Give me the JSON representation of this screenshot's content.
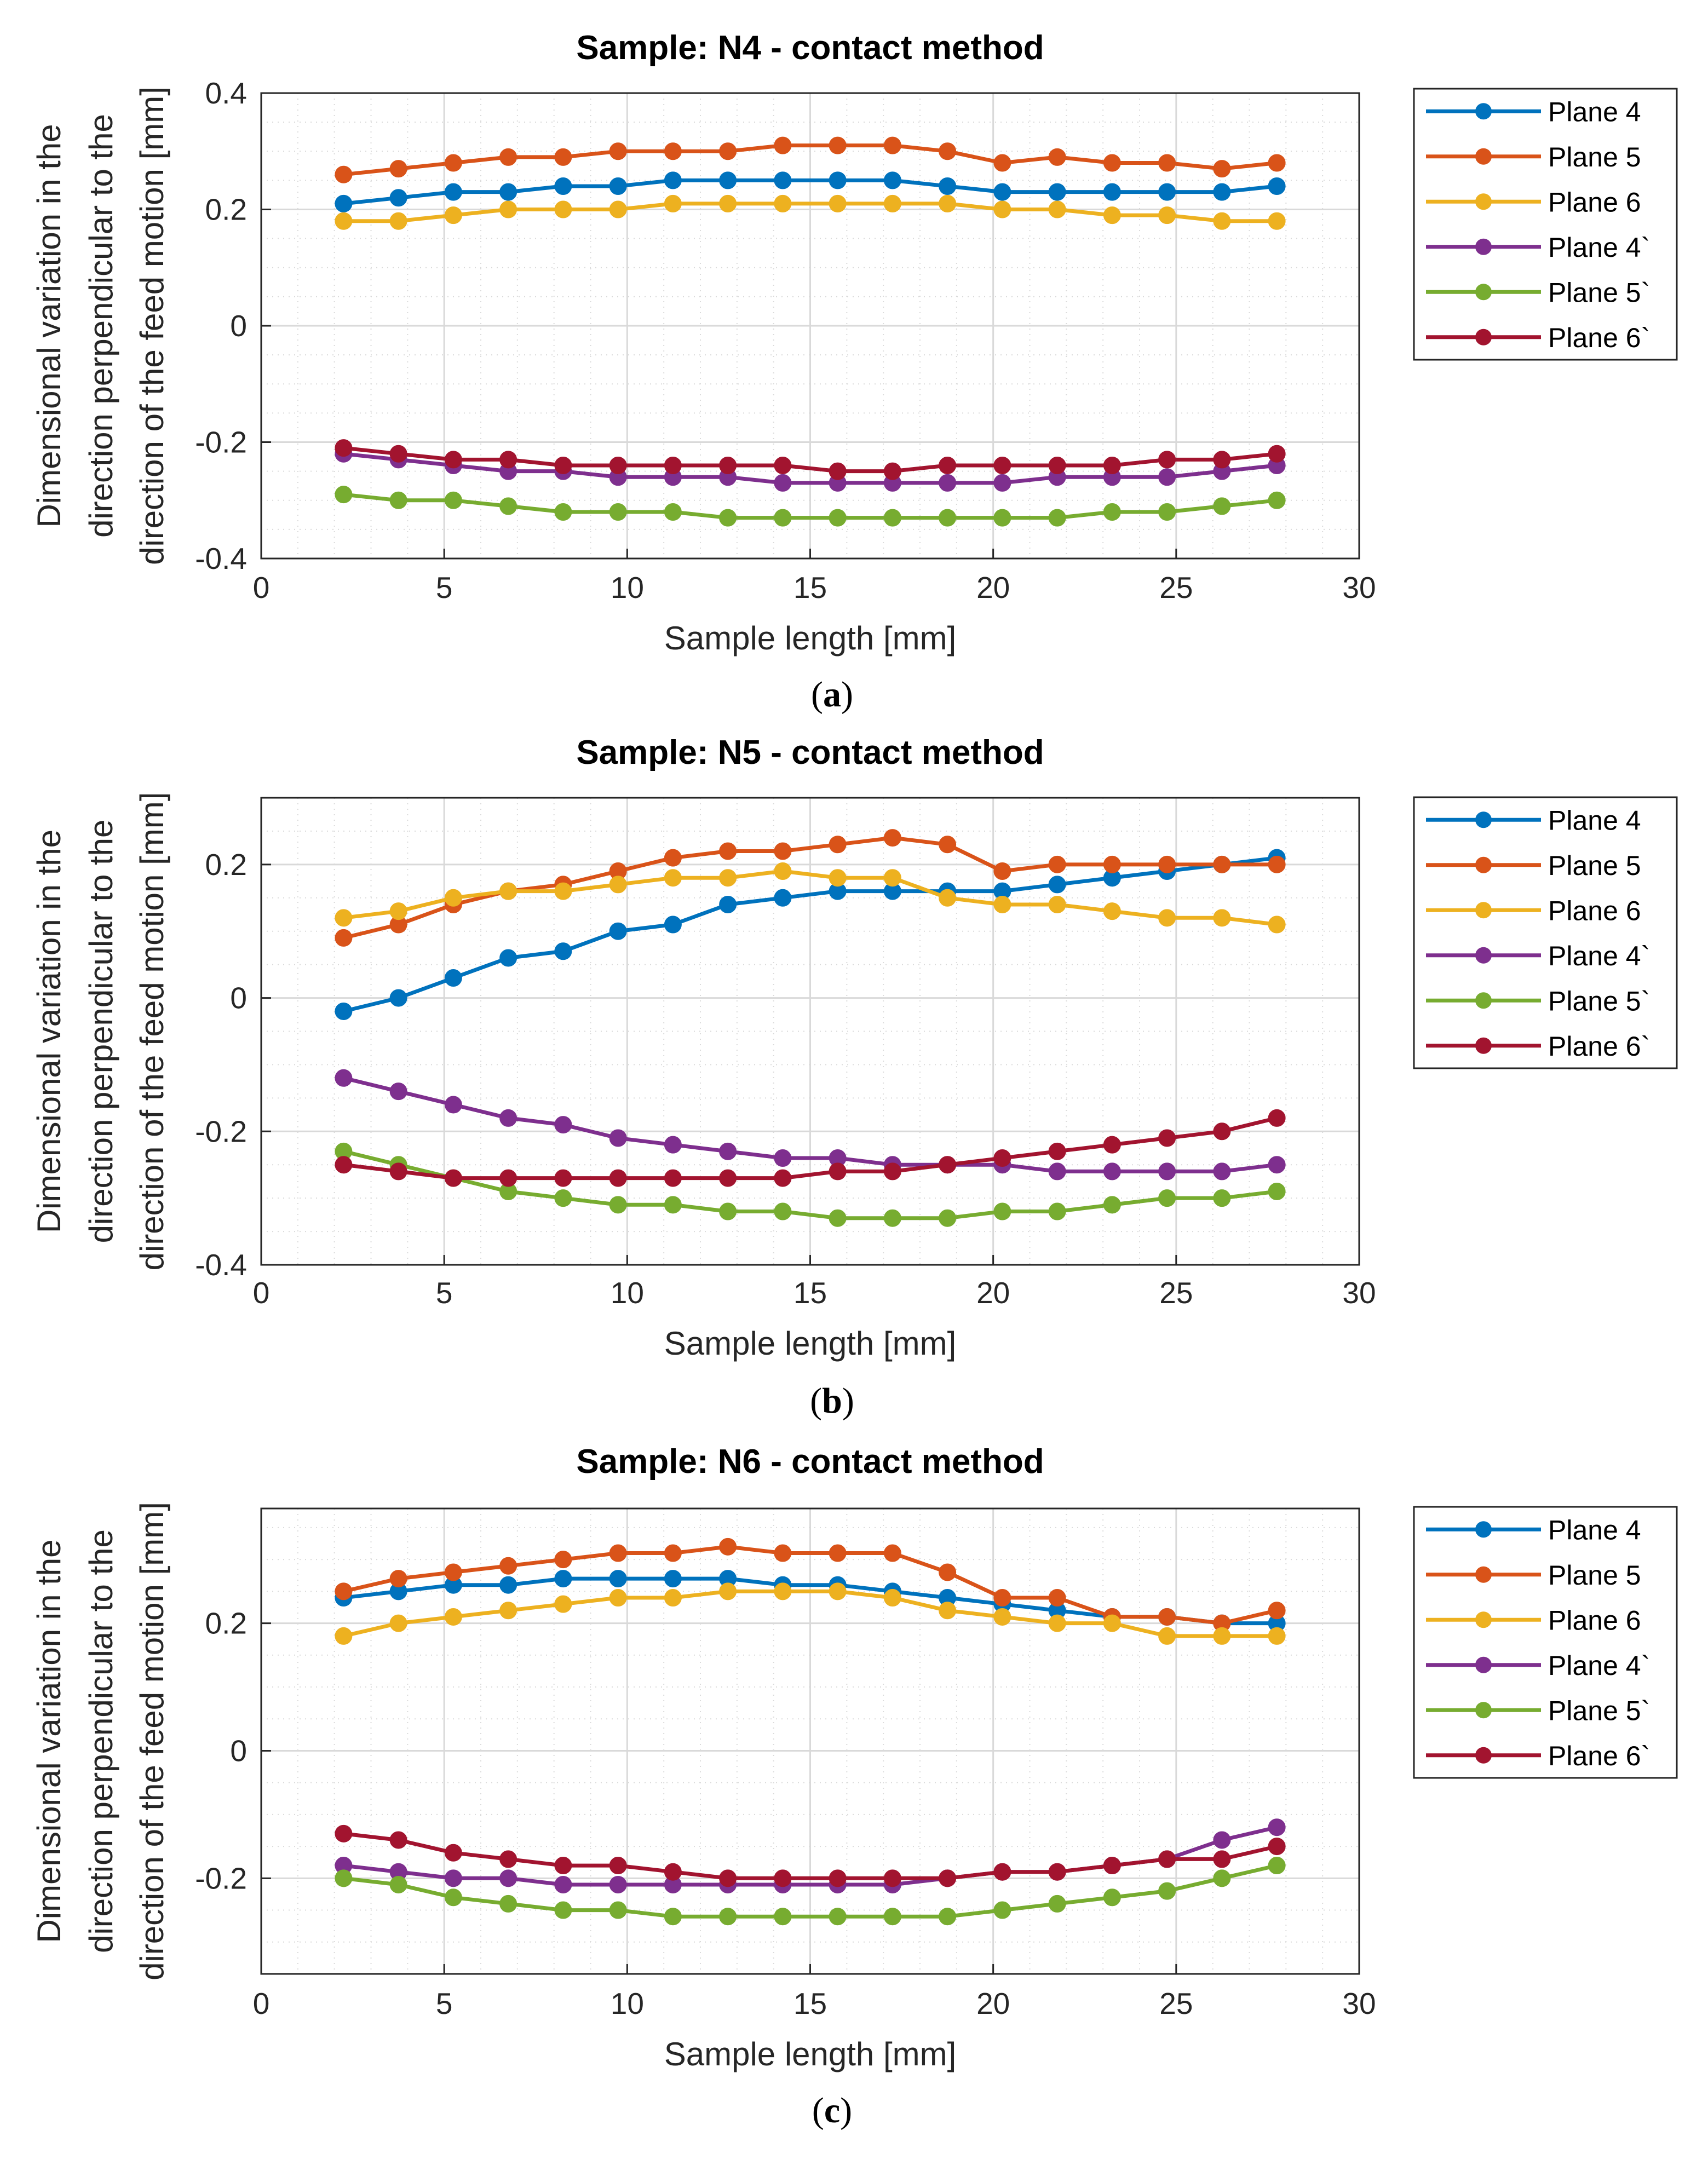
{
  "chart_data": [
    {
      "type": "line",
      "title": "Sample: N4 - contact method",
      "caption_letter": "a",
      "xlabel": "Sample length [mm]",
      "ylabel_lines": [
        "Dimensional variation in the",
        "direction perpendicular to the",
        "direction of the feed motion [mm]"
      ],
      "xlim": [
        0,
        30
      ],
      "ylim": [
        -0.4,
        0.4
      ],
      "xticks": [
        "0",
        "5",
        "10",
        "15",
        "20",
        "25",
        "30"
      ],
      "yticks": [
        "-0.4",
        "-0.2",
        "0",
        "0.2",
        "0.4"
      ],
      "grid": true,
      "minor_grid": true,
      "legend_position": "outside-right",
      "x": [
        2.25,
        3.75,
        5.25,
        6.75,
        8.25,
        9.75,
        11.25,
        12.75,
        14.25,
        15.75,
        17.25,
        18.75,
        20.25,
        21.75,
        23.25,
        24.75,
        26.25,
        27.75
      ],
      "series": [
        {
          "name": "Plane 4",
          "color": "#0072BD",
          "values": [
            0.21,
            0.22,
            0.23,
            0.23,
            0.24,
            0.24,
            0.25,
            0.25,
            0.25,
            0.25,
            0.25,
            0.24,
            0.23,
            0.23,
            0.23,
            0.23,
            0.23,
            0.24
          ]
        },
        {
          "name": "Plane 5",
          "color": "#D95319",
          "values": [
            0.26,
            0.27,
            0.28,
            0.29,
            0.29,
            0.3,
            0.3,
            0.3,
            0.31,
            0.31,
            0.31,
            0.3,
            0.28,
            0.29,
            0.28,
            0.28,
            0.27,
            0.28
          ]
        },
        {
          "name": "Plane 6",
          "color": "#EDB120",
          "values": [
            0.18,
            0.18,
            0.19,
            0.2,
            0.2,
            0.2,
            0.21,
            0.21,
            0.21,
            0.21,
            0.21,
            0.21,
            0.2,
            0.2,
            0.19,
            0.19,
            0.18,
            0.18
          ]
        },
        {
          "name": "Plane 4`",
          "color": "#7E2F8E",
          "values": [
            -0.22,
            -0.23,
            -0.24,
            -0.25,
            -0.25,
            -0.26,
            -0.26,
            -0.26,
            -0.27,
            -0.27,
            -0.27,
            -0.27,
            -0.27,
            -0.26,
            -0.26,
            -0.26,
            -0.25,
            -0.24
          ]
        },
        {
          "name": "Plane 5`",
          "color": "#77AC30",
          "values": [
            -0.29,
            -0.3,
            -0.3,
            -0.31,
            -0.32,
            -0.32,
            -0.32,
            -0.33,
            -0.33,
            -0.33,
            -0.33,
            -0.33,
            -0.33,
            -0.33,
            -0.32,
            -0.32,
            -0.31,
            -0.3
          ]
        },
        {
          "name": "Plane 6`",
          "color": "#A2142F",
          "values": [
            -0.21,
            -0.22,
            -0.23,
            -0.23,
            -0.24,
            -0.24,
            -0.24,
            -0.24,
            -0.24,
            -0.25,
            -0.25,
            -0.24,
            -0.24,
            -0.24,
            -0.24,
            -0.23,
            -0.23,
            -0.22
          ]
        }
      ]
    },
    {
      "type": "line",
      "title": "Sample: N5 - contact method",
      "caption_letter": "b",
      "xlabel": "Sample length [mm]",
      "ylabel_lines": [
        "Dimensional variation in the",
        "direction perpendicular to the",
        "direction of the feed motion [mm]"
      ],
      "xlim": [
        0,
        30
      ],
      "ylim": [
        -0.4,
        0.3
      ],
      "xticks": [
        "0",
        "5",
        "10",
        "15",
        "20",
        "25",
        "30"
      ],
      "yticks": [
        "-0.4",
        "-0.2",
        "0",
        "0.2"
      ],
      "grid": true,
      "minor_grid": true,
      "legend_position": "outside-right",
      "x": [
        2.25,
        3.75,
        5.25,
        6.75,
        8.25,
        9.75,
        11.25,
        12.75,
        14.25,
        15.75,
        17.25,
        18.75,
        20.25,
        21.75,
        23.25,
        24.75,
        26.25,
        27.75
      ],
      "series": [
        {
          "name": "Plane 4",
          "color": "#0072BD",
          "values": [
            -0.02,
            0.0,
            0.03,
            0.06,
            0.07,
            0.1,
            0.11,
            0.14,
            0.15,
            0.16,
            0.16,
            0.16,
            0.16,
            0.17,
            0.18,
            0.19,
            0.2,
            0.21
          ]
        },
        {
          "name": "Plane 5",
          "color": "#D95319",
          "values": [
            0.09,
            0.11,
            0.14,
            0.16,
            0.17,
            0.19,
            0.21,
            0.22,
            0.22,
            0.23,
            0.24,
            0.23,
            0.19,
            0.2,
            0.2,
            0.2,
            0.2,
            0.2
          ]
        },
        {
          "name": "Plane 6",
          "color": "#EDB120",
          "values": [
            0.12,
            0.13,
            0.15,
            0.16,
            0.16,
            0.17,
            0.18,
            0.18,
            0.19,
            0.18,
            0.18,
            0.15,
            0.14,
            0.14,
            0.13,
            0.12,
            0.12,
            0.11
          ]
        },
        {
          "name": "Plane 4`",
          "color": "#7E2F8E",
          "values": [
            -0.12,
            -0.14,
            -0.16,
            -0.18,
            -0.19,
            -0.21,
            -0.22,
            -0.23,
            -0.24,
            -0.24,
            -0.25,
            -0.25,
            -0.25,
            -0.26,
            -0.26,
            -0.26,
            -0.26,
            -0.25
          ]
        },
        {
          "name": "Plane 5`",
          "color": "#77AC30",
          "values": [
            -0.23,
            -0.25,
            -0.27,
            -0.29,
            -0.3,
            -0.31,
            -0.31,
            -0.32,
            -0.32,
            -0.33,
            -0.33,
            -0.33,
            -0.32,
            -0.32,
            -0.31,
            -0.3,
            -0.3,
            -0.29
          ]
        },
        {
          "name": "Plane 6`",
          "color": "#A2142F",
          "values": [
            -0.25,
            -0.26,
            -0.27,
            -0.27,
            -0.27,
            -0.27,
            -0.27,
            -0.27,
            -0.27,
            -0.26,
            -0.26,
            -0.25,
            -0.24,
            -0.23,
            -0.22,
            -0.21,
            -0.2,
            -0.18
          ]
        }
      ]
    },
    {
      "type": "line",
      "title": "Sample: N6 - contact method",
      "caption_letter": "c",
      "xlabel": "Sample length [mm]",
      "ylabel_lines": [
        "Dimensional variation in the",
        "direction perpendicular to the",
        "direction of the feed motion [mm]"
      ],
      "xlim": [
        0,
        30
      ],
      "ylim": [
        -0.35,
        0.38
      ],
      "xticks": [
        "0",
        "5",
        "10",
        "15",
        "20",
        "25",
        "30"
      ],
      "yticks": [
        "-0.2",
        "0",
        "0.2"
      ],
      "grid": true,
      "minor_grid": true,
      "legend_position": "outside-right",
      "x": [
        2.25,
        3.75,
        5.25,
        6.75,
        8.25,
        9.75,
        11.25,
        12.75,
        14.25,
        15.75,
        17.25,
        18.75,
        20.25,
        21.75,
        23.25,
        24.75,
        26.25,
        27.75
      ],
      "series": [
        {
          "name": "Plane 4",
          "color": "#0072BD",
          "values": [
            0.24,
            0.25,
            0.26,
            0.26,
            0.27,
            0.27,
            0.27,
            0.27,
            0.26,
            0.26,
            0.25,
            0.24,
            0.23,
            0.22,
            0.21,
            0.21,
            0.2,
            0.2
          ]
        },
        {
          "name": "Plane 5",
          "color": "#D95319",
          "values": [
            0.25,
            0.27,
            0.28,
            0.29,
            0.3,
            0.31,
            0.31,
            0.32,
            0.31,
            0.31,
            0.31,
            0.28,
            0.24,
            0.24,
            0.21,
            0.21,
            0.2,
            0.22
          ]
        },
        {
          "name": "Plane 6",
          "color": "#EDB120",
          "values": [
            0.18,
            0.2,
            0.21,
            0.22,
            0.23,
            0.24,
            0.24,
            0.25,
            0.25,
            0.25,
            0.24,
            0.22,
            0.21,
            0.2,
            0.2,
            0.18,
            0.18,
            0.18
          ]
        },
        {
          "name": "Plane 4`",
          "color": "#7E2F8E",
          "values": [
            -0.18,
            -0.19,
            -0.2,
            -0.2,
            -0.21,
            -0.21,
            -0.21,
            -0.21,
            -0.21,
            -0.21,
            -0.21,
            -0.2,
            -0.19,
            -0.19,
            -0.18,
            -0.17,
            -0.14,
            -0.12
          ]
        },
        {
          "name": "Plane 5`",
          "color": "#77AC30",
          "values": [
            -0.2,
            -0.21,
            -0.23,
            -0.24,
            -0.25,
            -0.25,
            -0.26,
            -0.26,
            -0.26,
            -0.26,
            -0.26,
            -0.26,
            -0.25,
            -0.24,
            -0.23,
            -0.22,
            -0.2,
            -0.18
          ]
        },
        {
          "name": "Plane 6`",
          "color": "#A2142F",
          "values": [
            -0.13,
            -0.14,
            -0.16,
            -0.17,
            -0.18,
            -0.18,
            -0.19,
            -0.2,
            -0.2,
            -0.2,
            -0.2,
            -0.2,
            -0.19,
            -0.19,
            -0.18,
            -0.17,
            -0.17,
            -0.15
          ]
        }
      ]
    }
  ]
}
